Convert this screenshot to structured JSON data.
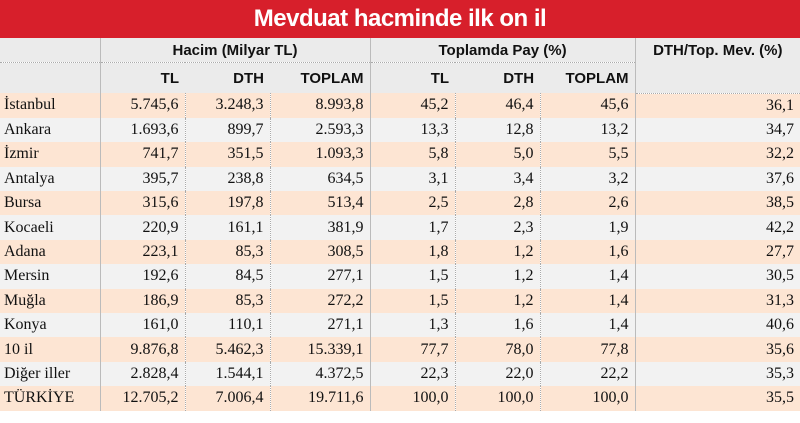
{
  "header": {
    "title": "Mevduat hacminde ilk on il"
  },
  "table": {
    "group_headers": [
      "Hacim (Milyar TL)",
      "Toplamda Pay (%)",
      "DTH/Top. Mev. (%)"
    ],
    "columns": [
      "TL",
      "DTH",
      "TOPLAM",
      "TL",
      "DTH",
      "TOPLAM"
    ],
    "rows": [
      [
        "İstanbul",
        "5.745,6",
        "3.248,3",
        "8.993,8",
        "45,2",
        "46,4",
        "45,6",
        "36,1"
      ],
      [
        "Ankara",
        "1.693,6",
        "899,7",
        "2.593,3",
        "13,3",
        "12,8",
        "13,2",
        "34,7"
      ],
      [
        "İzmir",
        "741,7",
        "351,5",
        "1.093,3",
        "5,8",
        "5,0",
        "5,5",
        "32,2"
      ],
      [
        "Antalya",
        "395,7",
        "238,8",
        "634,5",
        "3,1",
        "3,4",
        "3,2",
        "37,6"
      ],
      [
        "Bursa",
        "315,6",
        "197,8",
        "513,4",
        "2,5",
        "2,8",
        "2,6",
        "38,5"
      ],
      [
        "Kocaeli",
        "220,9",
        "161,1",
        "381,9",
        "1,7",
        "2,3",
        "1,9",
        "42,2"
      ],
      [
        "Adana",
        "223,1",
        "85,3",
        "308,5",
        "1,8",
        "1,2",
        "1,6",
        "27,7"
      ],
      [
        "Mersin",
        "192,6",
        "84,5",
        "277,1",
        "1,5",
        "1,2",
        "1,4",
        "30,5"
      ],
      [
        "Muğla",
        "186,9",
        "85,3",
        "272,2",
        "1,5",
        "1,2",
        "1,4",
        "31,3"
      ],
      [
        "Konya",
        "161,0",
        "110,1",
        "271,1",
        "1,3",
        "1,6",
        "1,4",
        "40,6"
      ],
      [
        "10 il",
        "9.876,8",
        "5.462,3",
        "15.339,1",
        "77,7",
        "78,0",
        "77,8",
        "35,6"
      ],
      [
        "Diğer iller",
        "2.828,4",
        "1.544,1",
        "4.372,5",
        "22,3",
        "22,0",
        "22,2",
        "35,3"
      ],
      [
        "TÜRKİYE",
        "12.705,2",
        "7.006,4",
        "19.711,6",
        "100,0",
        "100,0",
        "100,0",
        "35,5"
      ]
    ]
  }
}
